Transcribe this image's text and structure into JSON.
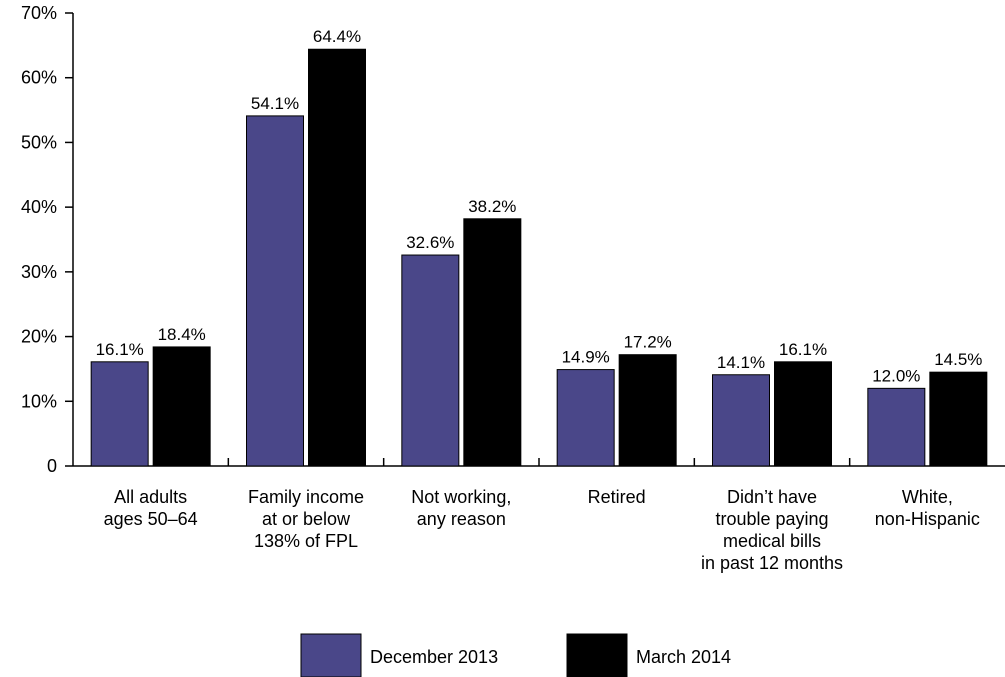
{
  "chart_data": {
    "type": "bar",
    "title": "",
    "xlabel": "",
    "ylabel": "",
    "ylim": [
      0,
      70
    ],
    "y_ticks": [
      0,
      10,
      20,
      30,
      40,
      50,
      60,
      70
    ],
    "y_tick_labels": [
      "0",
      "10%",
      "20%",
      "30%",
      "40%",
      "50%",
      "60%",
      "70%"
    ],
    "grid": false,
    "legend_position": "bottom",
    "categories": [
      [
        "All adults",
        "ages 50–64"
      ],
      [
        "Family income",
        "at or below",
        "138% of FPL"
      ],
      [
        "Not working,",
        "any reason"
      ],
      [
        "Retired"
      ],
      [
        "Didn’t have",
        "trouble paying",
        "medical bills",
        "in past 12 months"
      ],
      [
        "White,",
        "non-Hispanic"
      ]
    ],
    "series": [
      {
        "name": "December 2013",
        "color": "#4a4789",
        "values": [
          16.1,
          54.1,
          32.6,
          14.9,
          14.1,
          12.0
        ],
        "labels": [
          "16.1%",
          "54.1%",
          "32.6%",
          "14.9%",
          "14.1%",
          "12.0%"
        ]
      },
      {
        "name": "March 2014",
        "color": "#000000",
        "values": [
          18.4,
          64.4,
          38.2,
          17.2,
          16.1,
          14.5
        ],
        "labels": [
          "18.4%",
          "64.4%",
          "38.2%",
          "17.2%",
          "16.1%",
          "14.5%"
        ]
      }
    ]
  }
}
